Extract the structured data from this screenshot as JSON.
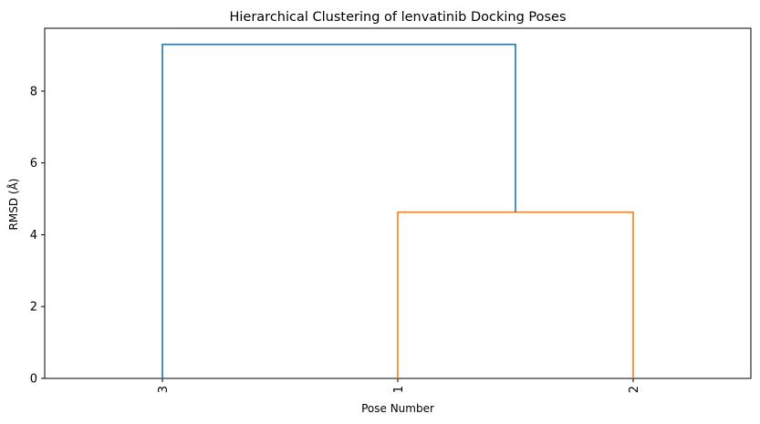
{
  "chart_data": {
    "type": "dendrogram",
    "title": "Hierarchical Clustering of lenvatinib Docking Poses",
    "xlabel": "Pose Number",
    "ylabel": "RMSD (Å)",
    "ylim": [
      0,
      9.75
    ],
    "yticks": [
      0,
      2,
      4,
      6,
      8
    ],
    "leaves": [
      "3",
      "1",
      "2"
    ],
    "links": [
      {
        "left": "1",
        "right": "2",
        "height": 4.63,
        "color": "#ff7f0e"
      },
      {
        "left": "3",
        "right": "1+2",
        "height": 9.3,
        "color": "#1f77b4"
      }
    ],
    "grid": false,
    "legend": "none"
  }
}
